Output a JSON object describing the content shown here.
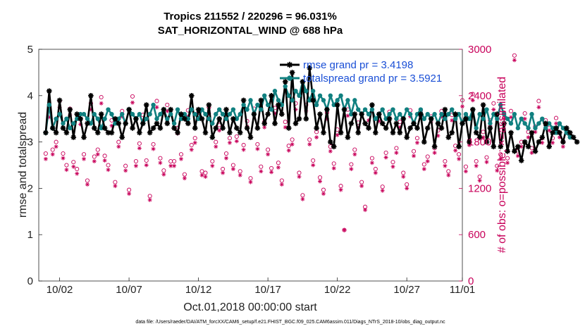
{
  "chart_data": {
    "type": "line",
    "title": "Tropics 211552 / 220296 = 96.031%",
    "subtitle": "SAT_HORIZONTAL_WIND @ 688 hPa",
    "xlabel": "Oct.01,2018 00:00:00 start",
    "ylabel": "rmse and totalspread",
    "ylabel_right": "# of obs: o=possible; ×=assimilated",
    "ylim": [
      0,
      5
    ],
    "ylim_right": [
      0,
      3000
    ],
    "xlim": [
      0.5,
      31
    ],
    "yticks": [
      "0",
      "1",
      "2",
      "3",
      "4",
      "5"
    ],
    "yticks_right": [
      "0",
      "600",
      "1200",
      "1800",
      "2400",
      "3000"
    ],
    "xticks": [
      {
        "label": "10/02",
        "day": 2
      },
      {
        "label": "10/07",
        "day": 7
      },
      {
        "label": "10/12",
        "day": 12
      },
      {
        "label": "10/17",
        "day": 17
      },
      {
        "label": "10/22",
        "day": 22
      },
      {
        "label": "10/27",
        "day": 27
      },
      {
        "label": "11/01",
        "day": 32
      }
    ],
    "legend": [
      {
        "label": "rmse grand pr = 3.4198",
        "color": "#000000",
        "marker": "star"
      },
      {
        "label": "totalspread grand pr = 3.5921",
        "color": "#108080",
        "marker": "circle"
      }
    ],
    "series": [
      {
        "name": "rmse",
        "color": "#000000",
        "day_start": 1.0,
        "day_step": 0.25,
        "values": [
          3.2,
          4.1,
          3.3,
          3.2,
          3.9,
          3.3,
          3.2,
          3.7,
          3.1,
          3.6,
          3.5,
          3.1,
          3.4,
          4.0,
          3.3,
          3.2,
          3.6,
          3.3,
          3.2,
          3.2,
          3.5,
          3.4,
          3.1,
          3.4,
          3.7,
          3.3,
          3.5,
          3.2,
          3.4,
          3.8,
          3.2,
          3.3,
          3.4,
          3.3,
          3.7,
          3.4,
          3.7,
          3.3,
          3.2,
          3.6,
          3.5,
          3.4,
          4.0,
          3.3,
          3.7,
          3.5,
          3.2,
          3.8,
          3.1,
          3.3,
          3.5,
          3.3,
          3.7,
          3.2,
          3.5,
          3.3,
          3.2,
          3.9,
          3.3,
          3.1,
          3.6,
          3.3,
          3.9,
          3.4,
          3.6,
          4.0,
          3.4,
          3.8,
          3.6,
          4.3,
          3.3,
          4.5,
          3.4,
          3.5,
          4.3,
          3.5,
          4.6,
          3.9,
          3.3,
          3.6,
          3.2,
          3.7,
          3.0,
          2.9,
          3.8,
          3.2,
          3.7,
          3.1,
          3.4,
          3.6,
          3.2,
          3.6,
          3.4,
          3.3,
          3.8,
          3.2,
          3.6,
          3.4,
          3.3,
          3.5,
          3.2,
          3.4,
          3.2,
          3.5,
          3.1,
          3.3,
          3.4,
          3.3,
          3.6,
          3.0,
          3.3,
          3.5,
          2.9,
          3.4,
          3.3,
          3.7,
          3.1,
          3.2,
          3.6,
          2.9,
          3.4,
          3.5,
          3.0,
          3.7,
          3.2,
          3.1,
          3.8,
          3.0,
          3.3,
          2.9,
          3.6,
          2.9,
          3.4,
          2.8,
          3.2,
          2.8,
          2.9,
          2.6,
          3.0,
          2.9,
          3.2,
          2.8,
          3.0,
          3.1,
          3.4,
          2.9,
          3.2,
          3.3,
          3.2,
          3.0,
          3.3,
          3.2,
          3.1,
          3.0
        ]
      },
      {
        "name": "totalspread",
        "color": "#108080",
        "day_start": 1.0,
        "day_step": 0.25,
        "values": [
          3.2,
          3.8,
          3.3,
          3.5,
          3.6,
          3.4,
          3.5,
          3.3,
          3.4,
          3.5,
          3.6,
          3.6,
          3.5,
          3.4,
          3.6,
          3.5,
          3.3,
          3.5,
          3.7,
          3.6,
          3.4,
          3.5,
          3.6,
          3.4,
          3.7,
          3.6,
          3.5,
          3.6,
          3.4,
          3.5,
          3.6,
          3.8,
          3.5,
          3.6,
          3.7,
          3.5,
          3.6,
          3.4,
          3.7,
          3.5,
          3.6,
          3.5,
          3.7,
          3.6,
          3.5,
          3.7,
          3.6,
          3.5,
          3.4,
          3.6,
          3.7,
          3.6,
          3.5,
          3.6,
          3.7,
          3.5,
          3.6,
          3.8,
          3.7,
          3.9,
          3.6,
          3.8,
          3.7,
          4.0,
          3.8,
          3.7,
          4.1,
          3.9,
          3.8,
          4.2,
          4.0,
          3.9,
          4.1,
          4.0,
          4.3,
          4.1,
          3.9,
          4.1,
          3.8,
          4.0,
          3.9,
          3.7,
          4.0,
          3.8,
          3.9,
          4.0,
          3.7,
          3.9,
          3.6,
          3.9,
          3.7,
          3.6,
          3.7,
          3.6,
          3.7,
          3.5,
          3.6,
          3.7,
          3.5,
          3.6,
          3.7,
          3.5,
          3.6,
          3.5,
          3.7,
          3.6,
          3.4,
          3.6,
          3.7,
          3.5,
          3.6,
          3.5,
          3.6,
          3.4,
          3.6,
          3.5,
          3.6,
          3.7,
          3.5,
          3.6,
          3.4,
          3.6,
          3.5,
          3.7,
          3.3,
          3.6,
          3.5,
          3.7,
          3.4,
          3.6,
          3.5,
          3.8,
          3.6,
          3.5,
          3.4,
          3.6,
          3.3,
          3.5,
          3.4,
          3.3,
          3.6,
          3.3,
          3.4,
          3.5,
          3.3,
          3.4,
          3.3,
          3.2,
          3.4,
          3.3,
          3.2,
          3.1
        ]
      },
      {
        "name": "obs_possible",
        "color": "#c8005a",
        "marker": "circle",
        "axis": "right",
        "day_start": 1.0,
        "day_step": 0.25,
        "values": [
          1650,
          2200,
          1700,
          1800,
          2330,
          1650,
          1500,
          2230,
          1540,
          1450,
          2100,
          1640,
          1300,
          2300,
          1610,
          1700,
          2380,
          1620,
          1500,
          2080,
          1280,
          1800,
          2200,
          1490,
          1180,
          2390,
          1550,
          1780,
          2150,
          1560,
          1100,
          1770,
          2330,
          1590,
          1430,
          2280,
          1550,
          1550,
          1980,
          1640,
          1380,
          2210,
          1760,
          1850,
          2180,
          1420,
          1400,
          2250,
          1550,
          1800,
          2020,
          1450,
          1650,
          1850,
          1500,
          1870,
          1420,
          1760,
          2070,
          1330,
          2230,
          1770,
          1480,
          2060,
          1700,
          1460,
          2240,
          1530,
          1300,
          2060,
          1750,
          1830,
          2300,
          1400,
          1110,
          2280,
          1830,
          1560,
          1930,
          1340,
          1180,
          2180,
          1740,
          1520,
          1960,
          1230,
          660,
          2220,
          1510,
          1700,
          2050,
          1280,
          960,
          2160,
          1590,
          1450,
          2140,
          1220,
          1660,
          2190,
          1540,
          1720,
          2060,
          1400,
          1250,
          2210,
          1680,
          1850,
          2210,
          1510,
          1610,
          2130,
          1720,
          1950,
          2200,
          1550,
          1420,
          2150,
          1750,
          1640,
          2340,
          1480,
          1820,
          2420,
          1550,
          1350,
          1930,
          1600,
          2080,
          2300,
          1490,
          1640,
          2180,
          1590,
          2200,
          2920,
          1680,
          1800,
          2170,
          1930,
          1720,
          2000,
          2330,
          1850,
          2080,
          2020,
          1850,
          2110,
          1920,
          1800
        ]
      },
      {
        "name": "obs_assimilated",
        "color": "#c8005a",
        "marker": "star",
        "axis": "right",
        "day_start": 1.0,
        "day_step": 0.25,
        "values": [
          1580,
          2120,
          1640,
          1740,
          2250,
          1590,
          1440,
          2150,
          1480,
          1390,
          2030,
          1580,
          1250,
          2220,
          1550,
          1640,
          2300,
          1560,
          1440,
          2010,
          1230,
          1740,
          2130,
          1430,
          1130,
          2310,
          1490,
          1720,
          2080,
          1500,
          1050,
          1710,
          2250,
          1530,
          1380,
          2200,
          1490,
          1490,
          1910,
          1580,
          1330,
          2130,
          1700,
          1790,
          2110,
          1370,
          1350,
          2170,
          1490,
          1740,
          1950,
          1400,
          1590,
          1790,
          1450,
          1810,
          1370,
          1700,
          2000,
          1280,
          2160,
          1710,
          1420,
          1990,
          1640,
          1410,
          2170,
          1470,
          1250,
          1990,
          1690,
          1770,
          2220,
          1350,
          1060,
          2200,
          1770,
          1500,
          1860,
          1290,
          1130,
          2100,
          1680,
          1460,
          1890,
          1180,
          660,
          2140,
          1450,
          1640,
          1980,
          1230,
          920,
          2080,
          1530,
          1400,
          2070,
          1170,
          1600,
          2110,
          1480,
          1660,
          1990,
          1350,
          1200,
          2130,
          1620,
          1790,
          2130,
          1450,
          1550,
          2060,
          1660,
          1880,
          2130,
          1490,
          1370,
          2080,
          1690,
          1580,
          2260,
          1420,
          1760,
          2340,
          1490,
          1300,
          1860,
          1540,
          2010,
          2220,
          1430,
          1580,
          2100,
          1530,
          2120,
          2860,
          1620,
          1740,
          2100,
          1860,
          1660,
          1930,
          2250,
          1790,
          2010,
          1950,
          1790,
          2040,
          1860,
          1740
        ]
      }
    ]
  },
  "footer": "data file: /Users/raeder/DAI/ATM_forcXX/CAM6_setup/f.e21.FHIST_BGC.f09_025.CAM6assim.011/Diags_NTrS_2018-10/obs_diag_output.nc"
}
